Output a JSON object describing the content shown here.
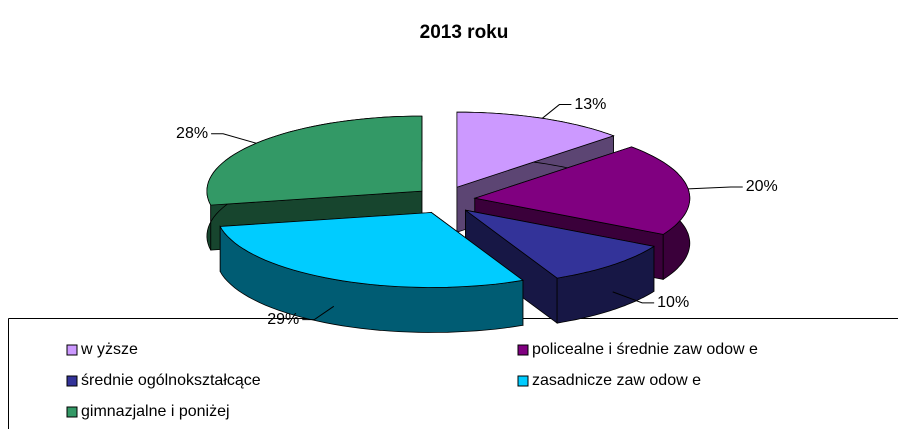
{
  "chart_data": {
    "type": "pie3d",
    "title": "2013 roku",
    "categories": [
      "w yższe",
      "policealne i średnie zaw odow e",
      "średnie ogólnokształcące",
      "zasadnicze zaw odow e",
      "gimnazjalne i poniżej"
    ],
    "values": [
      13,
      20,
      10,
      29,
      28
    ],
    "value_labels": [
      "13%",
      "20%",
      "10%",
      "29%",
      "28%"
    ],
    "colors": [
      "#cc99ff",
      "#800080",
      "#333399",
      "#00ccff",
      "#339966"
    ],
    "legend": "bottom"
  }
}
